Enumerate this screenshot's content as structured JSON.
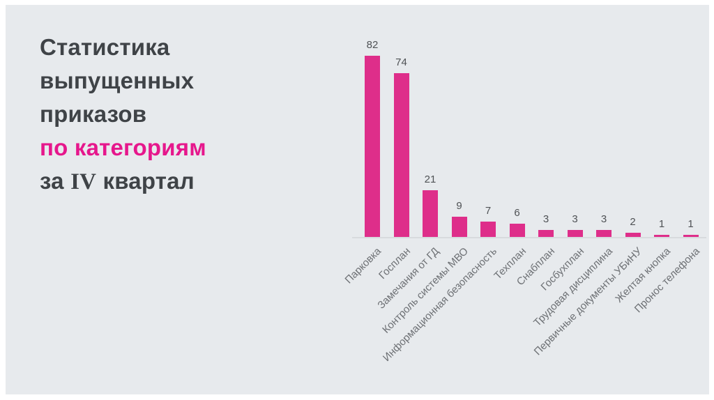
{
  "slide": {
    "title": {
      "lines": [
        "Статистика",
        "выпущенных",
        "приказов"
      ],
      "highlight_line": "по категориям",
      "last_line_pre": "за ",
      "last_line_serif": "IV",
      "last_line_post": " квартал"
    },
    "colors": {
      "page_background": "#ffffff",
      "slide_background": "#e7eaed",
      "accent_pink": "#e6178c",
      "bar_pink": "#de2e8a",
      "title_text": "#3f4347",
      "value_text": "#4f5255",
      "category_text": "#6d7074",
      "axis_line": "#d8dbde"
    }
  },
  "chart_data": {
    "type": "bar",
    "title": "Статистика выпущенных приказов по категориям за IV квартал",
    "categories": [
      "Парковка",
      "Госплан",
      "Замечания от ГД",
      "Контроль системы МВО",
      "Информационная безопасность",
      "Техплан",
      "Снабплан",
      "Госбухплан",
      "Трудовая дисциплина",
      "Первичные документы УБиНУ",
      "Желтая кнопка",
      "Пронос телефона"
    ],
    "values": [
      82,
      74,
      21,
      9,
      7,
      6,
      3,
      3,
      3,
      2,
      1,
      1
    ],
    "xlabel": "",
    "ylabel": "",
    "ylim": [
      0,
      90
    ],
    "grid": false,
    "legend": false,
    "value_labels_shown": true,
    "category_label_rotation_deg": 45
  }
}
